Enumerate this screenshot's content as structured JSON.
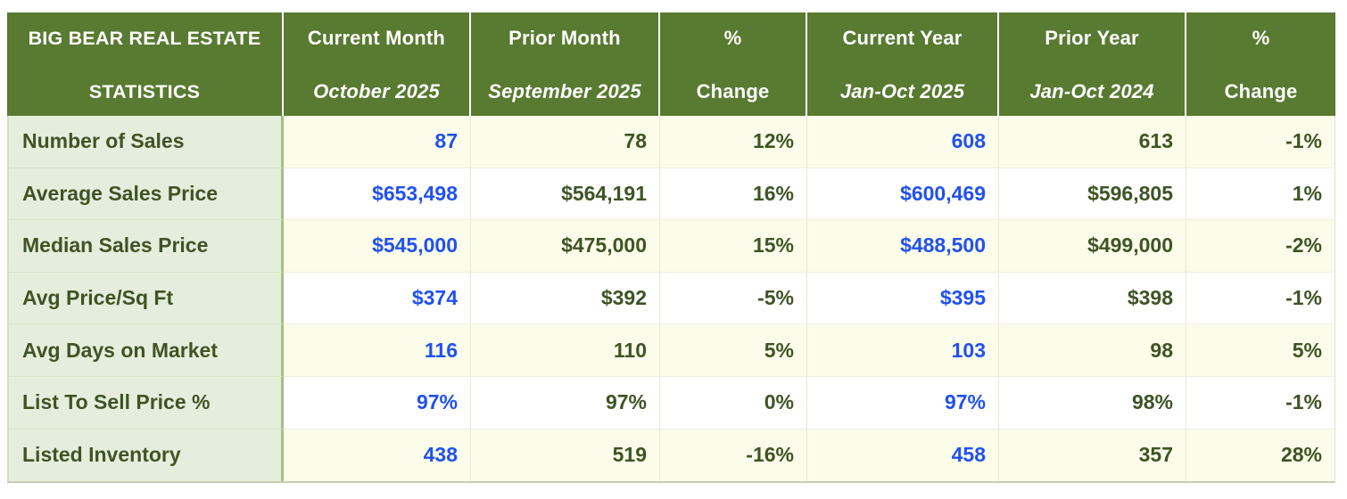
{
  "header": {
    "title_line1": "BIG BEAR REAL ESTATE",
    "title_line2": "STATISTICS",
    "cols": [
      {
        "l1": "Current Month",
        "l2": "October 2025"
      },
      {
        "l1": "Prior Month",
        "l2": "September 2025"
      },
      {
        "l1": "%",
        "l2": "Change"
      },
      {
        "l1": "Current Year",
        "l2": "Jan-Oct 2025"
      },
      {
        "l1": "Prior Year",
        "l2": "Jan-Oct 2024"
      },
      {
        "l1": "%",
        "l2": "Change"
      }
    ]
  },
  "rows": [
    {
      "label": "Number of Sales",
      "values": [
        "87",
        "78",
        "12%",
        "608",
        "613",
        "-1%"
      ]
    },
    {
      "label": "Average Sales Price",
      "values": [
        "$653,498",
        "$564,191",
        "16%",
        "$600,469",
        "$596,805",
        "1%"
      ]
    },
    {
      "label": "Median Sales Price",
      "values": [
        "$545,000",
        "$475,000",
        "15%",
        "$488,500",
        "$499,000",
        "-2%"
      ]
    },
    {
      "label": "Avg Price/Sq Ft",
      "values": [
        "$374",
        "$392",
        "-5%",
        "$395",
        "$398",
        "-1%"
      ]
    },
    {
      "label": "Avg Days on Market",
      "values": [
        "116",
        "110",
        "5%",
        "103",
        "98",
        "5%"
      ]
    },
    {
      "label": "List To Sell Price %",
      "values": [
        "97%",
        "97%",
        "0%",
        "97%",
        "98%",
        "-1%"
      ]
    },
    {
      "label": "Listed Inventory",
      "values": [
        "438",
        "519",
        "-16%",
        "458",
        "357",
        "28%"
      ]
    }
  ],
  "colors": {
    "header_bg": "#587a31",
    "header_text": "#ffffff",
    "label_bg": "#e5eedd",
    "text_green": "#3e5425",
    "value_blue": "#2151f0",
    "row_cream": "#fbfce9",
    "row_white": "#ffffff",
    "label_divider": "#a6bf85"
  },
  "chart_data": {
    "type": "table",
    "title": "Big Bear Real Estate Statistics",
    "columns": [
      "Current Month (October 2025)",
      "Prior Month (September 2025)",
      "% Change (month)",
      "Current Year (Jan-Oct 2025)",
      "Prior Year (Jan-Oct 2024)",
      "% Change (year)"
    ],
    "rows": [
      {
        "metric": "Number of Sales",
        "current_month": 87,
        "prior_month": 78,
        "mom_change_pct": 12,
        "current_year": 608,
        "prior_year": 613,
        "yoy_change_pct": -1
      },
      {
        "metric": "Average Sales Price",
        "current_month": 653498,
        "prior_month": 564191,
        "mom_change_pct": 16,
        "current_year": 600469,
        "prior_year": 596805,
        "yoy_change_pct": 1
      },
      {
        "metric": "Median Sales Price",
        "current_month": 545000,
        "prior_month": 475000,
        "mom_change_pct": 15,
        "current_year": 488500,
        "prior_year": 499000,
        "yoy_change_pct": -2
      },
      {
        "metric": "Avg Price/Sq Ft",
        "current_month": 374,
        "prior_month": 392,
        "mom_change_pct": -5,
        "current_year": 395,
        "prior_year": 398,
        "yoy_change_pct": -1
      },
      {
        "metric": "Avg Days on Market",
        "current_month": 116,
        "prior_month": 110,
        "mom_change_pct": 5,
        "current_year": 103,
        "prior_year": 98,
        "yoy_change_pct": 5
      },
      {
        "metric": "List To Sell Price %",
        "current_month": 97,
        "prior_month": 97,
        "mom_change_pct": 0,
        "current_year": 97,
        "prior_year": 98,
        "yoy_change_pct": -1
      },
      {
        "metric": "Listed Inventory",
        "current_month": 438,
        "prior_month": 519,
        "mom_change_pct": -16,
        "current_year": 458,
        "prior_year": 357,
        "yoy_change_pct": 28
      }
    ]
  }
}
